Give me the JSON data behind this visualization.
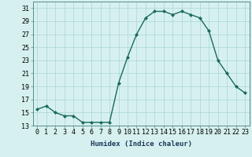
{
  "x": [
    0,
    1,
    2,
    3,
    4,
    5,
    6,
    7,
    8,
    9,
    10,
    11,
    12,
    13,
    14,
    15,
    16,
    17,
    18,
    19,
    20,
    21,
    22,
    23
  ],
  "y": [
    15.5,
    16.0,
    15.0,
    14.5,
    14.5,
    13.5,
    13.5,
    13.5,
    13.5,
    19.5,
    23.5,
    27.0,
    29.5,
    30.5,
    30.5,
    30.0,
    30.5,
    30.0,
    29.5,
    27.5,
    23.0,
    21.0,
    19.0,
    18.0
  ],
  "line_color": "#1a6b5a",
  "marker": "D",
  "marker_size": 2.0,
  "bg_color": "#d6f0f0",
  "grid_color": "#aad4d4",
  "xlabel": "Humidex (Indice chaleur)",
  "ylim": [
    13,
    32
  ],
  "xlim": [
    -0.5,
    23.5
  ],
  "yticks": [
    13,
    15,
    17,
    19,
    21,
    23,
    25,
    27,
    29,
    31
  ],
  "xtick_labels": [
    "0",
    "1",
    "2",
    "3",
    "4",
    "5",
    "6",
    "7",
    "8",
    "9",
    "10",
    "11",
    "12",
    "13",
    "14",
    "15",
    "16",
    "17",
    "18",
    "19",
    "20",
    "21",
    "22",
    "23"
  ],
  "xlabel_fontsize": 6.5,
  "tick_fontsize": 6.0,
  "linewidth": 1.0
}
